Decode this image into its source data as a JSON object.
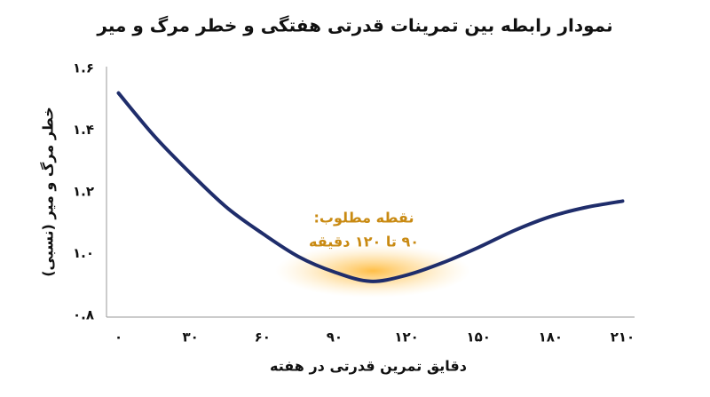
{
  "chart_data": {
    "type": "line",
    "title": "نمودار رابطه بین تمرینات قدرتی هفتگی و خطر مرگ و میر",
    "x_label": "دقایق تمرین قدرتی در هفته",
    "y_label": "خطر مرگ و میر (نسبی)",
    "annotation": [
      "نقطه مطلوب:",
      "۹۰ تا ۱۲۰ دقیقه"
    ],
    "x": [
      0,
      15,
      30,
      45,
      60,
      75,
      90,
      105,
      120,
      135,
      150,
      165,
      180,
      195,
      210
    ],
    "series": [
      {
        "color": "#1f2d6b",
        "values": [
          1.52,
          1.38,
          1.26,
          1.15,
          1.065,
          0.99,
          0.94,
          0.91,
          0.93,
          0.97,
          1.02,
          1.075,
          1.12,
          1.15,
          1.17
        ]
      }
    ],
    "xlim": [
      -5,
      215
    ],
    "ylim": [
      0.8,
      1.6
    ],
    "xticks": [
      {
        "value": 0,
        "label": "۰"
      },
      {
        "value": 30,
        "label": "۳۰"
      },
      {
        "value": 60,
        "label": "۶۰"
      },
      {
        "value": 90,
        "label": "۹۰"
      },
      {
        "value": 120,
        "label": "۱۲۰"
      },
      {
        "value": 150,
        "label": "۱۵۰"
      },
      {
        "value": 180,
        "label": "۱۸۰"
      },
      {
        "value": 210,
        "label": "۲۱۰"
      }
    ],
    "yticks": [
      {
        "value": 0.8,
        "label": "۰.۸"
      },
      {
        "value": 1.0,
        "label": "۱.۰"
      },
      {
        "value": 1.2,
        "label": "۱.۲"
      },
      {
        "value": 1.4,
        "label": "۱.۴"
      },
      {
        "value": 1.6,
        "label": "۱.۶"
      }
    ],
    "annotation_color": "#c98a12"
  }
}
